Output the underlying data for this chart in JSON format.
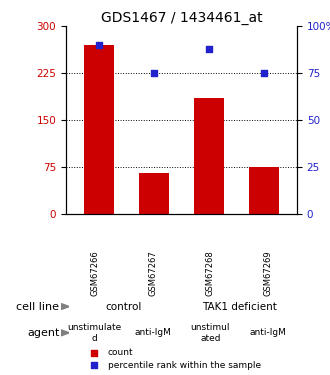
{
  "title": "GDS1467 / 1434461_at",
  "samples": [
    "GSM67266",
    "GSM67267",
    "GSM67268",
    "GSM67269"
  ],
  "counts": [
    270,
    65,
    185,
    75
  ],
  "percentiles": [
    90,
    75,
    88,
    75
  ],
  "ylim_left": [
    0,
    300
  ],
  "ylim_right": [
    0,
    100
  ],
  "yticks_left": [
    0,
    75,
    150,
    225,
    300
  ],
  "yticks_right": [
    0,
    25,
    50,
    75,
    100
  ],
  "bar_color": "#cc0000",
  "dot_color": "#2222cc",
  "bar_width": 0.55,
  "cell_line_labels": [
    "control",
    "TAK1 deficient"
  ],
  "cell_line_spans": [
    [
      0,
      2
    ],
    [
      2,
      4
    ]
  ],
  "cell_line_colors": [
    "#aaffaa",
    "#44dd66"
  ],
  "agent_labels": [
    "unstimulate\nd",
    "anti-IgM",
    "unstimul\nated",
    "anti-IgM"
  ],
  "agent_colors": [
    "#ee88ee",
    "#cc33cc",
    "#ee88ee",
    "#cc33cc"
  ],
  "row_label_cell_line": "cell line",
  "row_label_agent": "agent",
  "legend_count_label": "count",
  "legend_percentile_label": "percentile rank within the sample",
  "grid_color": "#000000",
  "background_color": "#ffffff",
  "title_fontsize": 10,
  "tick_fontsize": 7.5,
  "sample_fontsize": 6,
  "row_label_fontsize": 8,
  "cell_line_fontsize": 7.5,
  "agent_fontsize": 6.5,
  "legend_fontsize": 6.5
}
